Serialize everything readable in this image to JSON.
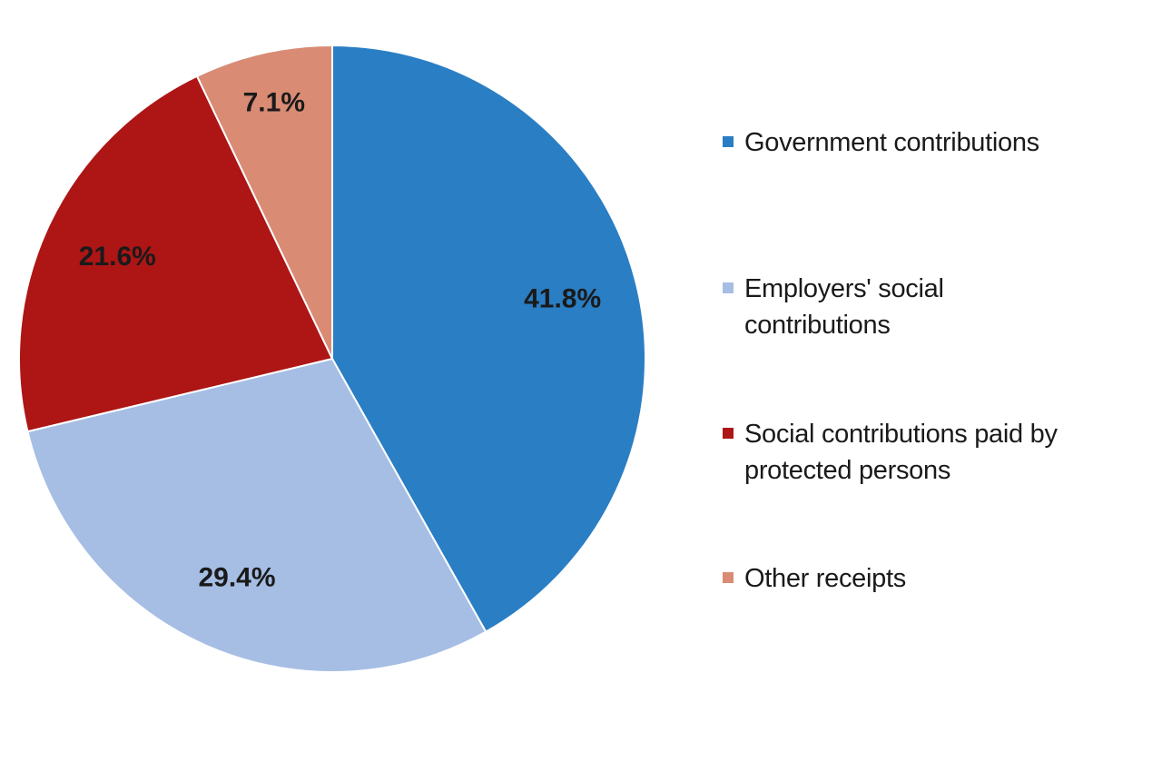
{
  "chart_data": {
    "type": "pie",
    "start": "12 o'clock, clockwise",
    "slices": [
      {
        "name": "Government contributions",
        "value": 41.8,
        "label": "41.8%",
        "color": "#2a7ec4"
      },
      {
        "name": "Employers' social contributions",
        "value": 29.4,
        "label": "29.4%",
        "color": "#a6bee4"
      },
      {
        "name": "Social contributions paid by protected persons",
        "value": 21.6,
        "label": "21.6%",
        "color": "#ae1515"
      },
      {
        "name": "Other receipts",
        "value": 7.1,
        "label": "7.1%",
        "color": "#d98b74"
      }
    ],
    "legend_placement": "right"
  }
}
